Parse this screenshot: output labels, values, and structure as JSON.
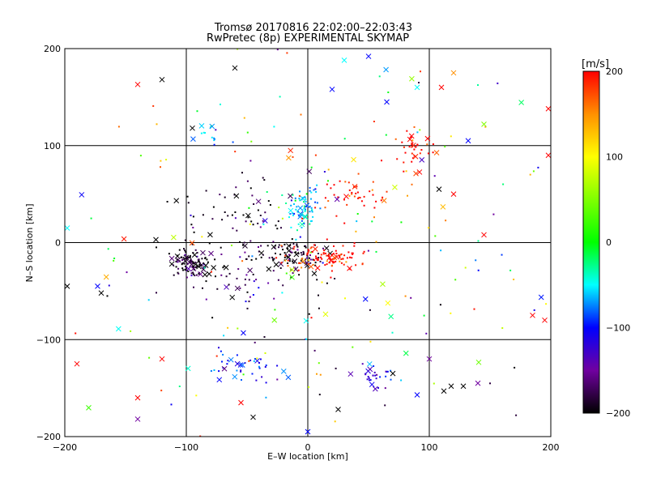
{
  "chart_data": {
    "type": "scatter",
    "title": "Tromsø 20170816 22:02:00–22:03:43",
    "subtitle": "RwPretec (8p) EXPERIMENTAL SKYMAP",
    "xlabel": "E–W location [km]",
    "ylabel": "N–S location [km]",
    "xlim": [
      -200,
      200
    ],
    "ylim": [
      -200,
      200
    ],
    "xticks": [
      -200,
      -100,
      0,
      100,
      200
    ],
    "yticks": [
      -200,
      -100,
      0,
      100,
      200
    ],
    "xtick_labels": [
      "−200",
      "−100",
      "0",
      "100",
      "200"
    ],
    "ytick_labels": [
      "−200",
      "−100",
      "0",
      "100",
      "200"
    ],
    "grid": true,
    "colorbar": {
      "label": "[m/s]",
      "range": [
        -200,
        200
      ],
      "ticks": [
        200,
        100,
        0,
        -100,
        -200
      ],
      "tick_labels": [
        "200",
        "100",
        "0",
        "−100",
        "−200"
      ],
      "stops": [
        {
          "v": -200,
          "color": "#000000"
        },
        {
          "v": -150,
          "color": "#7000a0"
        },
        {
          "v": -100,
          "color": "#0000ff"
        },
        {
          "v": -50,
          "color": "#00ffff"
        },
        {
          "v": 0,
          "color": "#00ff00"
        },
        {
          "v": 100,
          "color": "#ffff00"
        },
        {
          "v": 150,
          "color": "#ff9000"
        },
        {
          "v": 200,
          "color": "#ff0000"
        }
      ]
    },
    "clusters": [
      {
        "center": [
          -95,
          -20
        ],
        "spread": [
          10,
          7
        ],
        "velocity": -195,
        "n_dots": 90,
        "n_cross": 22
      },
      {
        "center": [
          -50,
          -30
        ],
        "spread": [
          25,
          20
        ],
        "velocity": -180,
        "n_dots": 60,
        "n_cross": 6
      },
      {
        "center": [
          -15,
          -12
        ],
        "spread": [
          14,
          8
        ],
        "velocity": -190,
        "n_dots": 70,
        "n_cross": 16
      },
      {
        "center": [
          -70,
          30
        ],
        "spread": [
          25,
          18
        ],
        "velocity": -195,
        "n_dots": 45,
        "n_cross": 6
      },
      {
        "center": [
          -5,
          35
        ],
        "spread": [
          8,
          10
        ],
        "velocity": -60,
        "n_dots": 60,
        "n_cross": 10
      },
      {
        "center": [
          15,
          -15
        ],
        "spread": [
          14,
          7
        ],
        "velocity": 200,
        "n_dots": 90,
        "n_cross": 8
      },
      {
        "center": [
          40,
          50
        ],
        "spread": [
          12,
          8
        ],
        "velocity": 200,
        "n_dots": 40,
        "n_cross": 3
      },
      {
        "center": [
          90,
          95
        ],
        "spread": [
          10,
          10
        ],
        "velocity": 200,
        "n_dots": 30,
        "n_cross": 8
      },
      {
        "center": [
          -55,
          -130
        ],
        "spread": [
          15,
          8
        ],
        "velocity": -100,
        "n_dots": 30,
        "n_cross": 10
      },
      {
        "center": [
          55,
          -135
        ],
        "spread": [
          8,
          6
        ],
        "velocity": -120,
        "n_dots": 25,
        "n_cross": 6
      },
      {
        "center": [
          -85,
          115
        ],
        "spread": [
          8,
          6
        ],
        "velocity": -70,
        "n_dots": 10,
        "n_cross": 3
      },
      {
        "center": [
          0,
          0
        ],
        "spread": [
          110,
          120
        ],
        "velocity": 0,
        "n_dots": 220,
        "n_cross": 40,
        "random_velocity": true
      }
    ],
    "points": [
      {
        "x": -140,
        "y": 163,
        "v": 200,
        "m": "x"
      },
      {
        "x": -120,
        "y": 168,
        "v": -200,
        "m": "x"
      },
      {
        "x": -60,
        "y": 180,
        "v": -200,
        "m": "x"
      },
      {
        "x": 50,
        "y": 192,
        "v": -100,
        "m": "x"
      },
      {
        "x": 30,
        "y": 188,
        "v": -50,
        "m": "x"
      },
      {
        "x": 120,
        "y": 175,
        "v": 150,
        "m": "x"
      },
      {
        "x": 110,
        "y": 160,
        "v": 200,
        "m": "x"
      },
      {
        "x": 90,
        "y": 160,
        "v": -50,
        "m": "x"
      },
      {
        "x": 20,
        "y": 158,
        "v": -100,
        "m": "x"
      },
      {
        "x": 65,
        "y": 145,
        "v": -100,
        "m": "x"
      },
      {
        "x": 145,
        "y": 122,
        "v": 50,
        "m": "x"
      },
      {
        "x": 132,
        "y": 105,
        "v": -100,
        "m": "x"
      },
      {
        "x": 198,
        "y": 90,
        "v": 200,
        "m": "x"
      },
      {
        "x": 198,
        "y": 138,
        "v": 200,
        "m": "x"
      },
      {
        "x": -198,
        "y": 15,
        "v": -50,
        "m": "x"
      },
      {
        "x": -198,
        "y": -45,
        "v": -200,
        "m": "x"
      },
      {
        "x": -173,
        "y": -45,
        "v": -100,
        "m": "x"
      },
      {
        "x": -170,
        "y": -52,
        "v": -200,
        "m": "x"
      },
      {
        "x": -190,
        "y": -125,
        "v": 200,
        "m": "x"
      },
      {
        "x": -140,
        "y": -160,
        "v": 200,
        "m": "x"
      },
      {
        "x": -140,
        "y": -182,
        "v": -150,
        "m": "x"
      },
      {
        "x": -120,
        "y": -120,
        "v": 200,
        "m": "x"
      },
      {
        "x": -55,
        "y": -165,
        "v": 200,
        "m": "x"
      },
      {
        "x": -45,
        "y": -180,
        "v": -200,
        "m": "x"
      },
      {
        "x": 0,
        "y": -195,
        "v": -100,
        "m": "x"
      },
      {
        "x": 25,
        "y": -172,
        "v": -200,
        "m": "x"
      },
      {
        "x": 70,
        "y": -135,
        "v": -200,
        "m": "x"
      },
      {
        "x": 90,
        "y": -157,
        "v": -100,
        "m": "x"
      },
      {
        "x": 112,
        "y": -153,
        "v": -200,
        "m": "x"
      },
      {
        "x": 118,
        "y": -148,
        "v": -200,
        "m": "x"
      },
      {
        "x": 128,
        "y": -148,
        "v": -200,
        "m": "x"
      },
      {
        "x": 140,
        "y": -145,
        "v": -150,
        "m": "x"
      },
      {
        "x": 100,
        "y": -120,
        "v": -150,
        "m": "x"
      },
      {
        "x": 185,
        "y": -75,
        "v": 200,
        "m": "x"
      },
      {
        "x": 195,
        "y": -80,
        "v": 200,
        "m": "x"
      },
      {
        "x": 145,
        "y": 8,
        "v": 200,
        "m": "x"
      },
      {
        "x": 120,
        "y": 50,
        "v": 200,
        "m": "x"
      },
      {
        "x": 108,
        "y": 55,
        "v": -200,
        "m": "x"
      },
      {
        "x": -95,
        "y": 118,
        "v": -200,
        "m": "x"
      },
      {
        "x": -125,
        "y": 3,
        "v": -200,
        "m": "x"
      },
      {
        "x": -165,
        "y": -55,
        "v": -200,
        "m": "m"
      }
    ]
  }
}
